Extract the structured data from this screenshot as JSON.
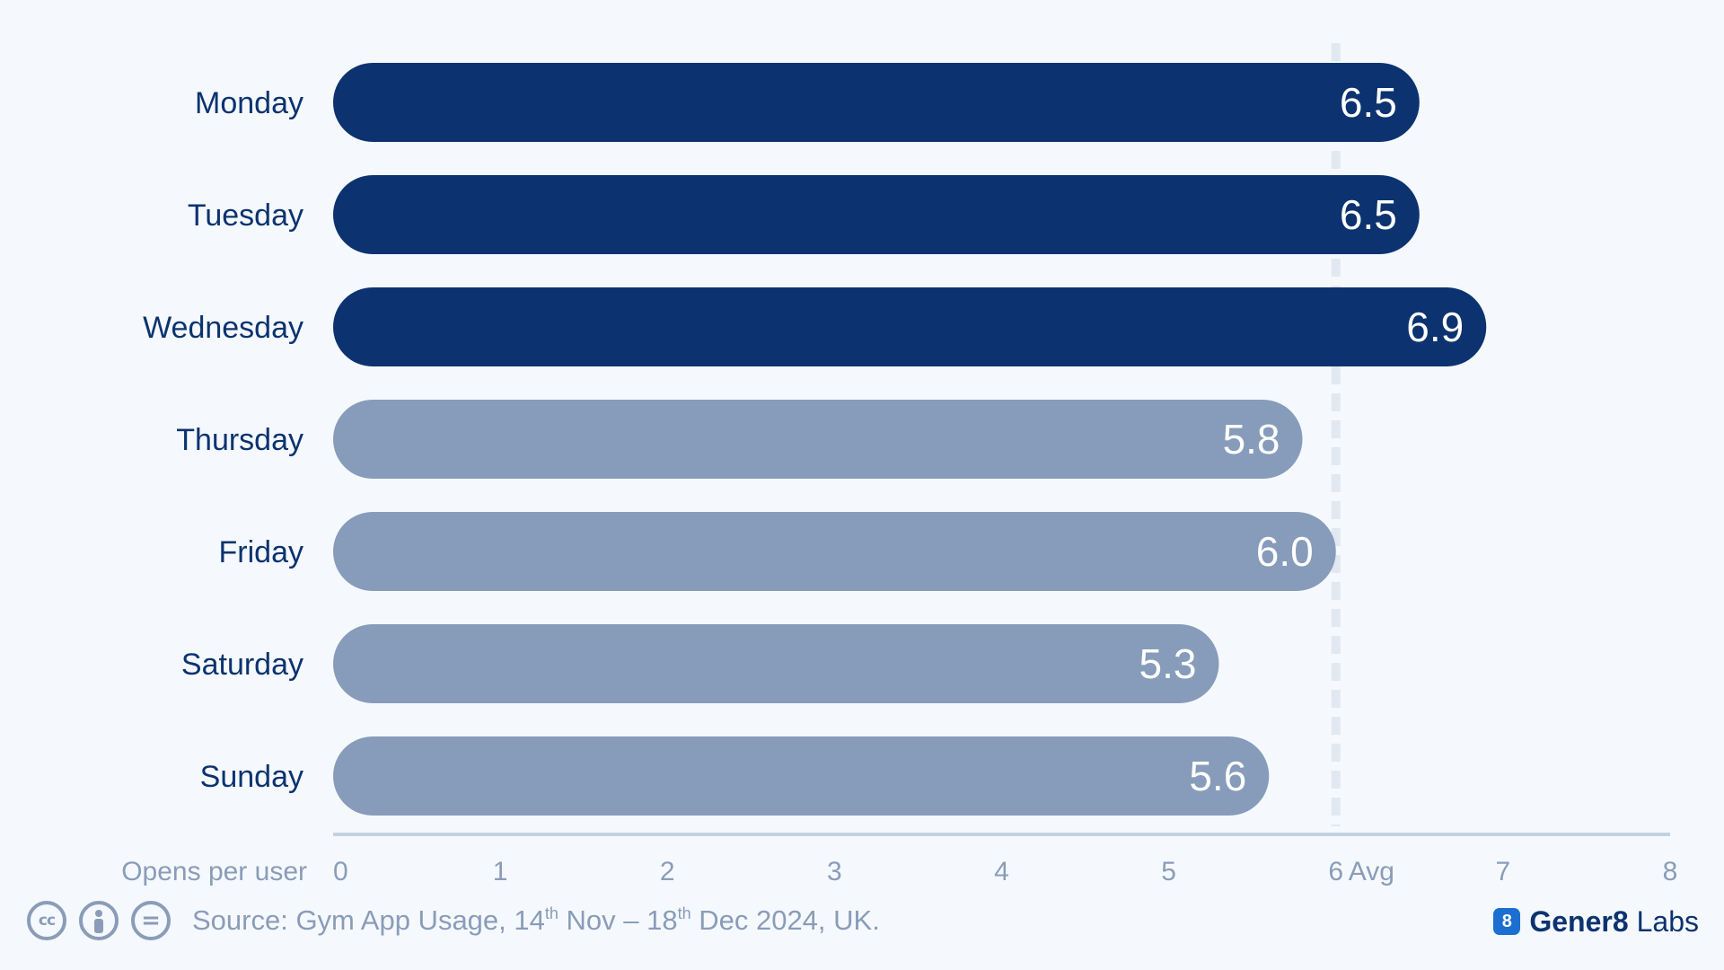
{
  "chart_data": {
    "type": "bar",
    "orientation": "horizontal",
    "categories": [
      "Monday",
      "Tuesday",
      "Wednesday",
      "Thursday",
      "Friday",
      "Saturday",
      "Sunday"
    ],
    "values": [
      6.5,
      6.5,
      6.9,
      5.8,
      6.0,
      5.3,
      5.6
    ],
    "value_labels": [
      "6.5",
      "6.5",
      "6.9",
      "5.8",
      "6.0",
      "5.3",
      "5.6"
    ],
    "highlighted": [
      true,
      true,
      true,
      false,
      false,
      false,
      false
    ],
    "xlabel": "Opens per user",
    "xlim": [
      0,
      8
    ],
    "x_ticks": [
      0,
      1,
      2,
      3,
      4,
      5,
      6,
      7,
      8
    ],
    "x_tick_labels": [
      "0",
      "1",
      "2",
      "3",
      "4",
      "5",
      "6",
      "7",
      "8"
    ],
    "reference_line": {
      "value": 6,
      "label": "Avg",
      "style": "dashed"
    },
    "grid": false,
    "colors": {
      "highlight": "#0c3370",
      "normal": "#879cba",
      "text": "#0c3370",
      "axis": "#c4d1e0",
      "muted": "#8a9cb8",
      "avg_line": "#e2e8f0",
      "bar_label": "#ffffff"
    }
  },
  "footer": {
    "license_icons": [
      "creative-commons-icon",
      "attribution-icon",
      "no-derivatives-icon"
    ],
    "source_prefix": "Source: Gym App Usage, 14",
    "source_sup1": "th",
    "source_middle": " Nov – 18",
    "source_sup2": "th",
    "source_suffix": " Dec 2024, UK.",
    "brand_logo": "8",
    "brand_name": "Gener8",
    "brand_suffix": "Labs"
  }
}
